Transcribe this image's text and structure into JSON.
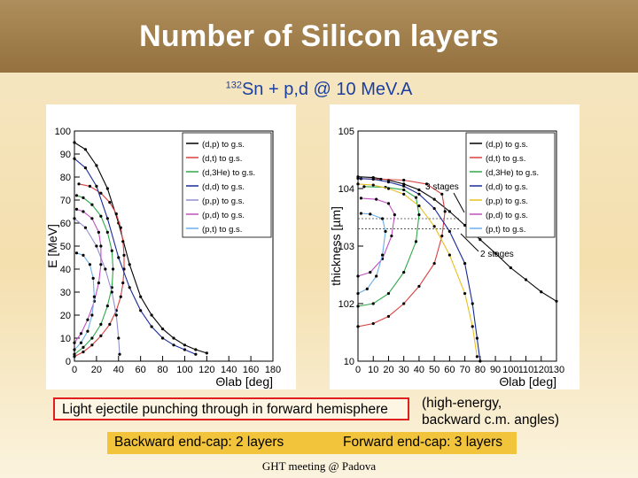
{
  "slide": {
    "title": "Number of Silicon layers",
    "subtitle_sup": "132",
    "subtitle_rest": "Sn + p,d @ 10 MeV.A",
    "punch_text": "Light ejectile punching through in forward hemisphere",
    "note_line1": "(high-energy,",
    "note_line2": "backward c.m. angles)",
    "backward_text": "Backward end-cap: 2 layers",
    "forward_text": "Forward end-cap: 3 layers",
    "footer": "GHT meeting @ Padova"
  },
  "chart_data": [
    {
      "type": "line",
      "x_label": "Θlab [deg]",
      "y_label": "E [MeV]",
      "x_ticks": [
        "0",
        "20",
        "40",
        "60",
        "80",
        "100",
        "120",
        "140",
        "160",
        "180"
      ],
      "y_ticks": [
        "0",
        "10",
        "20",
        "30",
        "40",
        "50",
        "60",
        "70",
        "80",
        "90",
        "100"
      ],
      "xlim": [
        0,
        180
      ],
      "ylim": [
        0,
        100
      ],
      "legend": [
        "(d,p)  to g.s.",
        "(d,t)  to g.s.",
        "(d,3He) to g.s.",
        "(d,d)  to g.s.",
        "(p,p)  to g.s.",
        "(p,d)  to g.s.",
        "(p,t)  to g.s."
      ],
      "series": [
        {
          "name": "(d,p) to g.s.",
          "color": "#000000",
          "points": [
            [
              0,
              95
            ],
            [
              10,
              92
            ],
            [
              20,
              85
            ],
            [
              30,
              75
            ],
            [
              40,
              60
            ],
            [
              50,
              42
            ],
            [
              60,
              28
            ],
            [
              70,
              20
            ],
            [
              80,
              14
            ],
            [
              90,
              10
            ],
            [
              100,
              7
            ],
            [
              110,
              5
            ],
            [
              120,
              3.5
            ]
          ]
        },
        {
          "name": "(d,t) to g.s.",
          "color": "#d94040",
          "points": [
            [
              0,
              2
            ],
            [
              8,
              4
            ],
            [
              16,
              7
            ],
            [
              24,
              11
            ],
            [
              32,
              16
            ],
            [
              38,
              22
            ],
            [
              42,
              28
            ],
            [
              44,
              34
            ],
            [
              45,
              40
            ],
            [
              45,
              46
            ],
            [
              44,
              52
            ],
            [
              42,
              58
            ],
            [
              38,
              64
            ],
            [
              32,
              69
            ],
            [
              24,
              73
            ],
            [
              14,
              76
            ],
            [
              4,
              77
            ]
          ]
        },
        {
          "name": "(d,3He) to g.s.",
          "color": "#2ea84a",
          "points": [
            [
              0,
              3
            ],
            [
              8,
              6
            ],
            [
              16,
              10
            ],
            [
              24,
              16
            ],
            [
              30,
              24
            ],
            [
              34,
              32
            ],
            [
              35,
              40
            ],
            [
              34,
              48
            ],
            [
              30,
              56
            ],
            [
              24,
              63
            ],
            [
              16,
              68
            ],
            [
              8,
              71
            ],
            [
              2,
              72
            ]
          ]
        },
        {
          "name": "(d,d) to g.s.",
          "color": "#1a2a9a",
          "points": [
            [
              0,
              88
            ],
            [
              10,
              84
            ],
            [
              20,
              76
            ],
            [
              30,
              62
            ],
            [
              40,
              45
            ],
            [
              50,
              32
            ],
            [
              60,
              22
            ],
            [
              70,
              15
            ],
            [
              80,
              10
            ],
            [
              90,
              7
            ],
            [
              100,
              5
            ],
            [
              110,
              3
            ]
          ]
        },
        {
          "name": "(p,p) to g.s.",
          "color": "#9090d0",
          "points": [
            [
              0,
              62
            ],
            [
              10,
              58
            ],
            [
              20,
              50
            ],
            [
              28,
              40
            ],
            [
              34,
              30
            ],
            [
              38,
              20
            ],
            [
              40,
              10
            ],
            [
              41,
              3
            ]
          ]
        },
        {
          "name": "(p,d) to g.s.",
          "color": "#c050c0",
          "points": [
            [
              0,
              8
            ],
            [
              6,
              12
            ],
            [
              12,
              18
            ],
            [
              18,
              26
            ],
            [
              22,
              34
            ],
            [
              24,
              42
            ],
            [
              24,
              50
            ],
            [
              22,
              56
            ],
            [
              16,
              62
            ],
            [
              8,
              65
            ],
            [
              2,
              66
            ]
          ]
        },
        {
          "name": "(p,t) to g.s.",
          "color": "#6ab0ea",
          "points": [
            [
              0,
              5
            ],
            [
              6,
              8
            ],
            [
              12,
              13
            ],
            [
              16,
              20
            ],
            [
              18,
              28
            ],
            [
              17,
              36
            ],
            [
              14,
              42
            ],
            [
              8,
              46
            ],
            [
              2,
              47
            ]
          ]
        }
      ]
    },
    {
      "type": "line",
      "x_label": "Θlab [deg]",
      "y_label": "thickness [µm]",
      "x_ticks": [
        "0",
        "10",
        "20",
        "30",
        "40",
        "50",
        "60",
        "70",
        "80",
        "90",
        "100",
        "110",
        "120",
        "130"
      ],
      "y_ticks": [
        "10",
        "10^2",
        "10^3",
        "10^4",
        "10^5"
      ],
      "y_log": true,
      "xlim": [
        0,
        130
      ],
      "ylim": [
        10,
        100000
      ],
      "annotations": [
        "3 stages",
        "2 stages"
      ],
      "stage_levels": [
        3000,
        2000
      ],
      "legend": [
        "(d,p)  to g.s.",
        "(d,t)  to g.s.",
        "(d,3He) to g.s.",
        "(d,d)  to g.s.",
        "(p,p)  to g.s.",
        "(p,d)  to g.s.",
        "(p,t)  to g.s."
      ],
      "series": [
        {
          "name": "(d,p) to g.s.",
          "color": "#000000",
          "points": [
            [
              0,
              16000
            ],
            [
              10,
              15500
            ],
            [
              20,
              14000
            ],
            [
              30,
              12000
            ],
            [
              40,
              9500
            ],
            [
              50,
              6500
            ],
            [
              60,
              4000
            ],
            [
              70,
              2300
            ],
            [
              80,
              1300
            ],
            [
              90,
              750
            ],
            [
              100,
              420
            ],
            [
              110,
              260
            ],
            [
              120,
              160
            ],
            [
              130,
              110
            ]
          ]
        },
        {
          "name": "(d,t) to g.s.",
          "color": "#d94040",
          "points": [
            [
              0,
              40
            ],
            [
              10,
              45
            ],
            [
              20,
              60
            ],
            [
              30,
              100
            ],
            [
              40,
              200
            ],
            [
              50,
              500
            ],
            [
              55,
              1500
            ],
            [
              57,
              4000
            ],
            [
              55,
              8000
            ],
            [
              45,
              12000
            ],
            [
              30,
              14000
            ],
            [
              15,
              14500
            ],
            [
              2,
              14800
            ]
          ]
        },
        {
          "name": "(d,3He) to g.s.",
          "color": "#2ea84a",
          "points": [
            [
              0,
              90
            ],
            [
              10,
              100
            ],
            [
              20,
              150
            ],
            [
              30,
              350
            ],
            [
              38,
              1200
            ],
            [
              40,
              3500
            ],
            [
              38,
              7000
            ],
            [
              30,
              9500
            ],
            [
              18,
              10500
            ],
            [
              4,
              10800
            ]
          ]
        },
        {
          "name": "(d,d) to g.s.",
          "color": "#1a2a9a",
          "points": [
            [
              0,
              15000
            ],
            [
              10,
              14500
            ],
            [
              20,
              13000
            ],
            [
              30,
              11000
            ],
            [
              40,
              8000
            ],
            [
              50,
              4500
            ],
            [
              60,
              1800
            ],
            [
              70,
              500
            ],
            [
              75,
              100
            ],
            [
              78,
              25
            ],
            [
              80,
              10
            ]
          ]
        },
        {
          "name": "(p,p) to g.s.",
          "color": "#e8c020",
          "points": [
            [
              0,
              12000
            ],
            [
              10,
              11500
            ],
            [
              20,
              10000
            ],
            [
              30,
              8000
            ],
            [
              40,
              5000
            ],
            [
              50,
              2200
            ],
            [
              60,
              700
            ],
            [
              70,
              150
            ],
            [
              75,
              40
            ],
            [
              78,
              12
            ]
          ]
        },
        {
          "name": "(p,d) to g.s.",
          "color": "#c050c0",
          "points": [
            [
              0,
              300
            ],
            [
              8,
              350
            ],
            [
              16,
              600
            ],
            [
              22,
              1500
            ],
            [
              24,
              3500
            ],
            [
              20,
              5500
            ],
            [
              12,
              6500
            ],
            [
              2,
              6800
            ]
          ]
        },
        {
          "name": "(p,t) to g.s.",
          "color": "#6ab0ea",
          "points": [
            [
              0,
              150
            ],
            [
              6,
              180
            ],
            [
              12,
              300
            ],
            [
              16,
              700
            ],
            [
              18,
              1800
            ],
            [
              16,
              3000
            ],
            [
              8,
              3600
            ],
            [
              2,
              3700
            ]
          ]
        }
      ]
    }
  ]
}
